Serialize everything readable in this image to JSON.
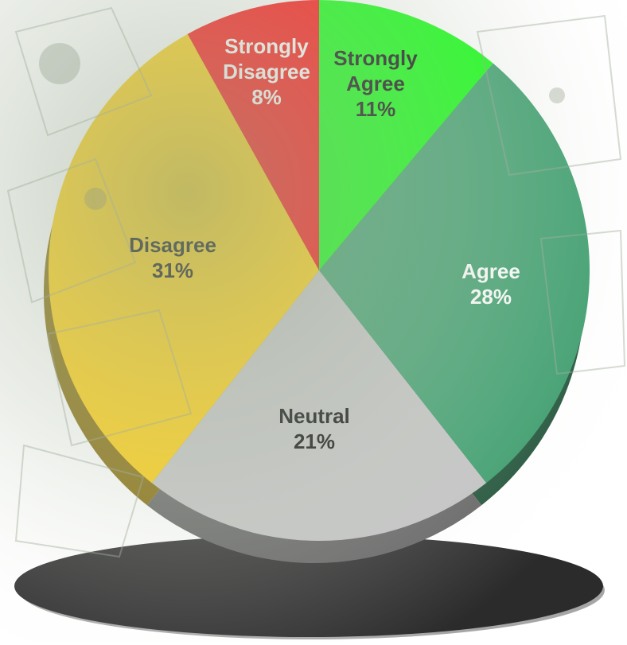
{
  "chart_data": {
    "type": "pie",
    "title": "",
    "slices": [
      {
        "label": "Strongly Agree",
        "value": 11,
        "value_label": "11%",
        "color": "#00ff00",
        "side_color": "#00a000",
        "text_color": "#000000"
      },
      {
        "label": "Agree",
        "value": 28,
        "value_label": "28%",
        "color": "#339966",
        "side_color": "#1a4d33",
        "text_color": "#ffffff"
      },
      {
        "label": "Neutral",
        "value": 21,
        "value_label": "21%",
        "color": "#c0c0c0",
        "side_color": "#606060",
        "text_color": "#000000"
      },
      {
        "label": "Disagree",
        "value": 31,
        "value_label": "31%",
        "color": "#ffcc00",
        "side_color": "#806600",
        "text_color": "#000000"
      },
      {
        "label": "Strongly Disagree",
        "value": 8,
        "value_label": "8%",
        "color": "#ff0000",
        "side_color": "#800000",
        "text_color": "#ffffff"
      }
    ],
    "start": "12 o'clock",
    "direction": "clockwise",
    "style": "3d",
    "legend": "none"
  },
  "colors": {
    "pedestal": "#2b2b2b",
    "background_texture": "#b8c4b0"
  }
}
